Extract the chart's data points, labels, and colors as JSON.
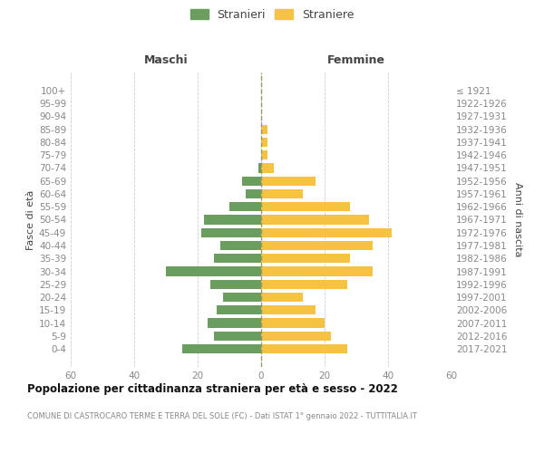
{
  "age_groups": [
    "100+",
    "95-99",
    "90-94",
    "85-89",
    "80-84",
    "75-79",
    "70-74",
    "65-69",
    "60-64",
    "55-59",
    "50-54",
    "45-49",
    "40-44",
    "35-39",
    "30-34",
    "25-29",
    "20-24",
    "15-19",
    "10-14",
    "5-9",
    "0-4"
  ],
  "birth_years": [
    "≤ 1921",
    "1922-1926",
    "1927-1931",
    "1932-1936",
    "1937-1941",
    "1942-1946",
    "1947-1951",
    "1952-1956",
    "1957-1961",
    "1962-1966",
    "1967-1971",
    "1972-1976",
    "1977-1981",
    "1982-1986",
    "1987-1991",
    "1992-1996",
    "1997-2001",
    "2002-2006",
    "2007-2011",
    "2012-2016",
    "2017-2021"
  ],
  "males": [
    0,
    0,
    0,
    0,
    0,
    0,
    1,
    6,
    5,
    10,
    18,
    19,
    13,
    15,
    30,
    16,
    12,
    14,
    17,
    15,
    25
  ],
  "females": [
    0,
    0,
    0,
    2,
    2,
    2,
    4,
    17,
    13,
    28,
    34,
    41,
    35,
    28,
    35,
    27,
    13,
    17,
    20,
    22,
    27
  ],
  "male_color": "#6a9e5e",
  "female_color": "#f5c242",
  "male_label": "Stranieri",
  "female_label": "Straniere",
  "header_left": "Maschi",
  "header_right": "Femmine",
  "ylabel_left": "Fasce di età",
  "ylabel_right": "Anni di nascita",
  "xlim": 60,
  "title": "Popolazione per cittadinanza straniera per età e sesso - 2022",
  "subtitle": "COMUNE DI CASTROCARO TERME E TERRA DEL SOLE (FC) - Dati ISTAT 1° gennaio 2022 - TUTTITALIA.IT",
  "background_color": "#ffffff",
  "grid_color": "#cccccc",
  "dashed_line_color": "#999966",
  "tick_label_color": "#888888",
  "axis_label_color": "#444444",
  "title_color": "#111111",
  "subtitle_color": "#888888"
}
